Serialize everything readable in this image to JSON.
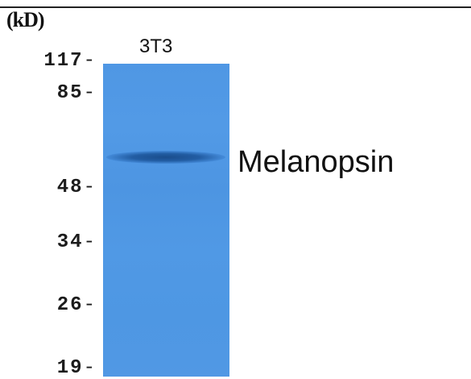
{
  "blot": {
    "unit_label": "(kD)",
    "lane_label": "3T3",
    "protein_label": "Melanopsin",
    "gel_color": "#4f97e4",
    "band_color": "#1f5696",
    "markers": [
      {
        "label": "117",
        "tick": "-"
      },
      {
        "label": "85",
        "tick": "-"
      },
      {
        "label": "48",
        "tick": "-"
      },
      {
        "label": "34",
        "tick": "-"
      },
      {
        "label": "26",
        "tick": "-"
      },
      {
        "label": "19",
        "tick": "-"
      }
    ]
  }
}
